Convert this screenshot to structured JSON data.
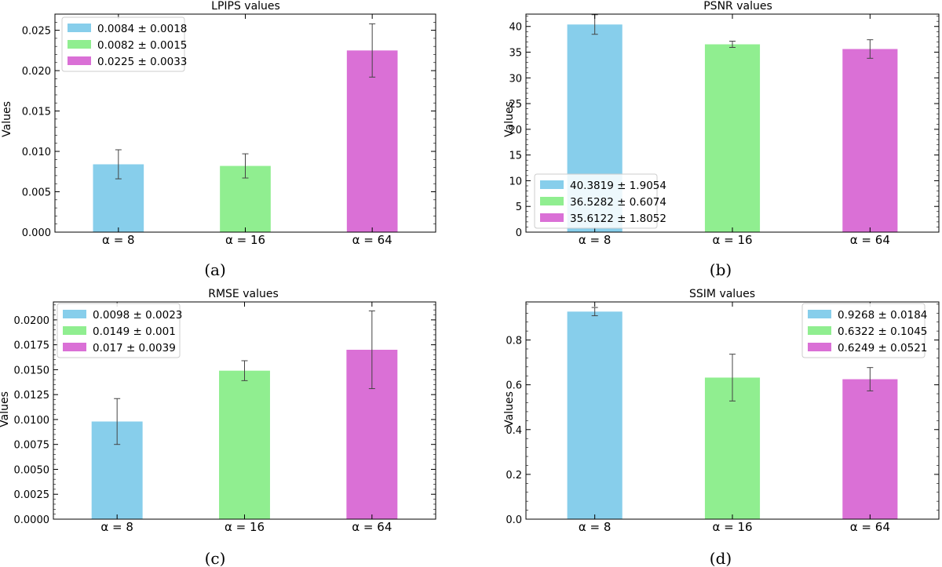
{
  "panels": [
    {
      "caption": "(a)",
      "chart_data": {
        "type": "bar",
        "title": "LPIPS values",
        "xlabel": "",
        "ylabel": "Values",
        "categories": [
          "α = 8",
          "α = 16",
          "α = 64"
        ],
        "values": [
          0.0084,
          0.0082,
          0.0225
        ],
        "errors": [
          0.0018,
          0.0015,
          0.0033
        ],
        "colors": [
          "#87ceeb",
          "#90ee90",
          "#da70d6"
        ],
        "ylim": [
          0,
          0.027
        ],
        "yticks": [
          0,
          0.005,
          0.01,
          0.015,
          0.02,
          0.025
        ],
        "ytick_labels": [
          "0.000",
          "0.005",
          "0.010",
          "0.015",
          "0.020",
          "0.025"
        ],
        "legend": [
          "0.0084 ± 0.0018",
          "0.0082 ± 0.0015",
          "0.0225 ± 0.0033"
        ],
        "legend_loc": "upper-left",
        "grid": false
      }
    },
    {
      "caption": "(b)",
      "chart_data": {
        "type": "bar",
        "title": "PSNR values",
        "xlabel": "",
        "ylabel": "Values",
        "categories": [
          "α = 8",
          "α = 16",
          "α = 64"
        ],
        "values": [
          40.3819,
          36.5282,
          35.6122
        ],
        "errors": [
          1.9054,
          0.6074,
          1.8052
        ],
        "colors": [
          "#87ceeb",
          "#90ee90",
          "#da70d6"
        ],
        "ylim": [
          0,
          42.4
        ],
        "yticks": [
          0,
          5,
          10,
          15,
          20,
          25,
          30,
          35,
          40
        ],
        "ytick_labels": [
          "0",
          "5",
          "10",
          "15",
          "20",
          "25",
          "30",
          "35",
          "40"
        ],
        "legend": [
          "40.3819 ± 1.9054",
          "36.5282 ± 0.6074",
          "35.6122 ± 1.8052"
        ],
        "legend_loc": "lower-left",
        "grid": false
      }
    },
    {
      "caption": "(c)",
      "chart_data": {
        "type": "bar",
        "title": "RMSE values",
        "xlabel": "",
        "ylabel": "Values",
        "categories": [
          "α = 8",
          "α = 16",
          "α = 64"
        ],
        "values": [
          0.0098,
          0.0149,
          0.017
        ],
        "errors": [
          0.0023,
          0.001,
          0.0039
        ],
        "colors": [
          "#87ceeb",
          "#90ee90",
          "#da70d6"
        ],
        "ylim": [
          0,
          0.0218
        ],
        "yticks": [
          0,
          0.0025,
          0.005,
          0.0075,
          0.01,
          0.0125,
          0.015,
          0.0175,
          0.02
        ],
        "ytick_labels": [
          "0.0000",
          "0.0025",
          "0.0050",
          "0.0075",
          "0.0100",
          "0.0125",
          "0.0150",
          "0.0175",
          "0.0200"
        ],
        "legend": [
          "0.0098 ± 0.0023",
          "0.0149 ± 0.001",
          "0.017 ± 0.0039"
        ],
        "legend_loc": "upper-left",
        "grid": false
      }
    },
    {
      "caption": "(d)",
      "chart_data": {
        "type": "bar",
        "title": "SSIM values",
        "xlabel": "",
        "ylabel": "Values",
        "categories": [
          "α = 8",
          "α = 16",
          "α = 64"
        ],
        "values": [
          0.9268,
          0.6322,
          0.6249
        ],
        "errors": [
          0.0184,
          0.1045,
          0.0521
        ],
        "colors": [
          "#87ceeb",
          "#90ee90",
          "#da70d6"
        ],
        "ylim": [
          0,
          0.97
        ],
        "yticks": [
          0,
          0.2,
          0.4,
          0.6,
          0.8
        ],
        "ytick_labels": [
          "0.0",
          "0.2",
          "0.4",
          "0.6",
          "0.8"
        ],
        "legend": [
          "0.9268 ± 0.0184",
          "0.6322 ± 0.1045",
          "0.6249 ± 0.0521"
        ],
        "legend_loc": "upper-right",
        "grid": false
      }
    }
  ]
}
